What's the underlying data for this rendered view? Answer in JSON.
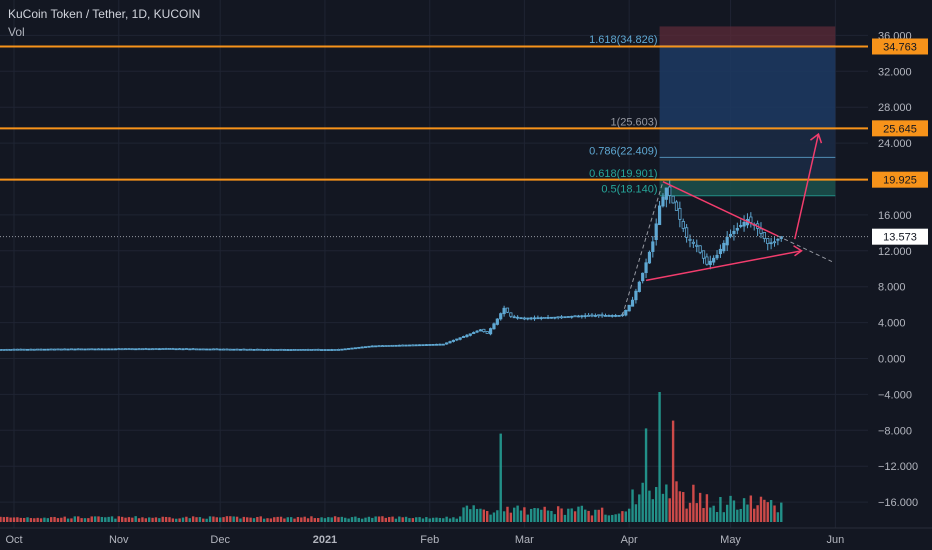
{
  "header": {
    "symbol": "KuCoin Token / Tether, 1D, KUCOIN",
    "volume_label": "Vol"
  },
  "colors": {
    "background": "#131722",
    "grid": "#1f2433",
    "candle_up": "#5fa8d3",
    "volume_up": "#26a69a",
    "volume_down": "#ef5350",
    "level": "#f7931a",
    "triangle": "#f23d6d",
    "fib_top_zone": "#5c2b38",
    "fib_mid_zone": "#1d3a63",
    "fib_low_zone": "#1b4e4a"
  },
  "chart_data": {
    "type": "candlestick",
    "title": "KuCoin Token / Tether, 1D, KUCOIN",
    "x_ticks": [
      "Oct",
      "Nov",
      "Dec",
      "2021",
      "Feb",
      "Mar",
      "Apr",
      "May",
      "Jun"
    ],
    "y_ticks": [
      "36.000",
      "32.000",
      "28.000",
      "24.000",
      "20.000",
      "16.000",
      "12.000",
      "8.000",
      "4.000",
      "0.000",
      "−4.000",
      "−8.000",
      "−12.000",
      "−16.000"
    ],
    "ylim": [
      -17.3,
      37
    ],
    "grid": true,
    "current_price": "13.573",
    "horizontal_levels": [
      {
        "label": "34.763",
        "value": 34.763
      },
      {
        "label": "25.645",
        "value": 25.645
      },
      {
        "label": "19.925",
        "value": 19.925
      }
    ],
    "fibonacci": [
      {
        "label": "1.618(34.826)",
        "value": 34.826
      },
      {
        "label": "1(25.603)",
        "value": 25.603
      },
      {
        "label": "0.786(22.409)",
        "value": 22.409
      },
      {
        "label": "0.618(19.901)",
        "value": 19.901
      },
      {
        "label": "0.5(18.140)",
        "value": 18.14
      }
    ],
    "price_path": [
      {
        "date": "2020-09-26",
        "close": 1.0
      },
      {
        "date": "2020-10-15",
        "close": 1.05
      },
      {
        "date": "2020-11-15",
        "close": 1.1
      },
      {
        "date": "2020-12-15",
        "close": 1.0
      },
      {
        "date": "2021-01-05",
        "close": 1.0
      },
      {
        "date": "2021-01-15",
        "close": 1.4
      },
      {
        "date": "2021-02-05",
        "close": 1.6
      },
      {
        "date": "2021-02-12",
        "close": 2.6
      },
      {
        "date": "2021-02-16",
        "close": 3.2
      },
      {
        "date": "2021-02-18",
        "close": 2.8
      },
      {
        "date": "2021-02-21",
        "close": 4.4
      },
      {
        "date": "2021-02-23",
        "close": 5.6
      },
      {
        "date": "2021-02-25",
        "close": 4.7
      },
      {
        "date": "2021-03-01",
        "close": 4.5
      },
      {
        "date": "2021-03-10",
        "close": 4.6
      },
      {
        "date": "2021-03-20",
        "close": 4.8
      },
      {
        "date": "2021-03-30",
        "close": 4.8
      },
      {
        "date": "2021-04-02",
        "close": 6.5
      },
      {
        "date": "2021-04-05",
        "close": 9.5
      },
      {
        "date": "2021-04-08",
        "close": 13.0
      },
      {
        "date": "2021-04-10",
        "close": 17.0
      },
      {
        "date": "2021-04-12",
        "close": 19.0
      },
      {
        "date": "2021-04-15",
        "close": 16.5
      },
      {
        "date": "2021-04-18",
        "close": 13.5
      },
      {
        "date": "2021-04-21",
        "close": 12.5
      },
      {
        "date": "2021-04-24",
        "close": 10.5
      },
      {
        "date": "2021-04-27",
        "close": 11.5
      },
      {
        "date": "2021-04-30",
        "close": 13.5
      },
      {
        "date": "2021-05-03",
        "close": 14.5
      },
      {
        "date": "2021-05-06",
        "close": 15.5
      },
      {
        "date": "2021-05-09",
        "close": 14.5
      },
      {
        "date": "2021-05-12",
        "close": 12.8
      },
      {
        "date": "2021-05-14",
        "close": 13.0
      },
      {
        "date": "2021-05-16",
        "close": 13.573
      }
    ],
    "volume_peaks": [
      {
        "date": "2021-02-22",
        "relative": 0.68
      },
      {
        "date": "2021-04-06",
        "relative": 0.72
      },
      {
        "date": "2021-04-10",
        "relative": 1.0
      },
      {
        "date": "2021-04-14",
        "relative": 0.78
      }
    ],
    "triangle_upper": [
      {
        "date": "2021-04-11",
        "price": 19.7
      },
      {
        "date": "2021-05-31",
        "price": 10.8
      }
    ],
    "triangle_lower": [
      {
        "date": "2021-04-06",
        "price": 8.7
      },
      {
        "date": "2021-05-22",
        "price": 12.0
      }
    ],
    "breakout_arrow": [
      {
        "date": "2021-05-20",
        "price": 13.3
      },
      {
        "date": "2021-05-27",
        "price": 25.0
      }
    ],
    "reward_box": {
      "start": "2021-04-10",
      "end": "2021-06-01",
      "top": 37.0,
      "bottom": 18.14
    }
  }
}
